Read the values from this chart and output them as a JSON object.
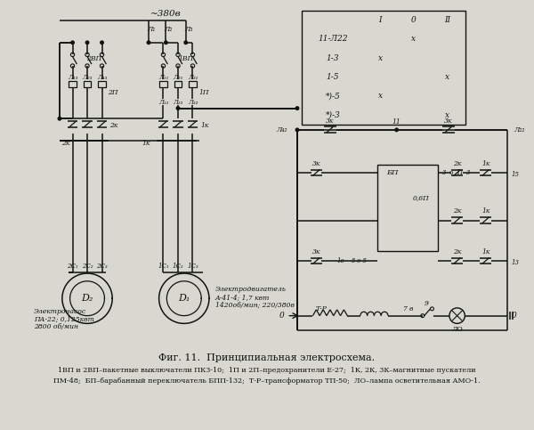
{
  "title": "Фиг. 11.  Принципиальная электросхема.",
  "caption_line1": "1ВП и 2ВП–пакетные выключатели ПКЗ-10;  1П и 2П–предохранители Е-27;  1К, 2К, 3К–магнитные пускатели",
  "caption_line2": "ПМ-48;  БП–барабанный переключатель БПП-132;  Т-Р–трансформатор ТП-50;  ЛО–лампа осветительная АМО-1.",
  "bg_color": "#d8d8d0",
  "line_color": "#111111",
  "table_rows": [
    [
      "",
      "I",
      "0",
      "II"
    ],
    [
      "11-Л22",
      "",
      "x",
      ""
    ],
    [
      "1-3",
      "x",
      "",
      ""
    ],
    [
      "1-5",
      "",
      "",
      "x"
    ],
    [
      "*)-5",
      "x",
      "",
      ""
    ],
    [
      "*)-3",
      "",
      "",
      "x"
    ]
  ],
  "supply_label": "~380в",
  "motor2_label": "D₂",
  "motor2_desc1": "Электронасос",
  "motor2_desc2": "ПА-22; 0,125квт",
  "motor2_desc3": "2800 об/мин",
  "motor1_label": "D₁",
  "motor1_desc1": "Электродвигатель",
  "motor1_desc2": "А-41-4; 1,7 квт",
  "motor1_desc3": "1420об/мин; 220/380в"
}
